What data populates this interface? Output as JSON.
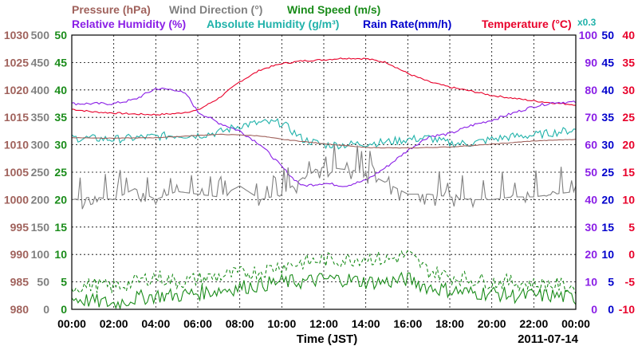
{
  "chart_data": {
    "type": "line",
    "date": "2011-07-14",
    "xlabel": "Time (JST)",
    "x_ticks": [
      "00:00",
      "02:00",
      "04:00",
      "06:00",
      "08:00",
      "10:00",
      "12:00",
      "14:00",
      "16:00",
      "18:00",
      "20:00",
      "22:00",
      "00:00"
    ],
    "x_range_hours": [
      0,
      24
    ],
    "grid": true,
    "colors": {
      "pressure": "#a0625c",
      "wind_direction": "#808080",
      "wind_speed": "#1a8c1a",
      "relative_humidity": "#8a1ee6",
      "absolute_humidity": "#20b2aa",
      "rain_rate": "#0000cc",
      "temperature": "#e8002a"
    },
    "legend_row1": [
      {
        "key": "pressure",
        "text": "Pressure (hPa)"
      },
      {
        "key": "wind_direction",
        "text": "Wind Direction (°)"
      },
      {
        "key": "wind_speed",
        "text": "Wind Speed (m/s)"
      }
    ],
    "legend_row2": [
      {
        "key": "relative_humidity",
        "text": "Relative Humidity (%)"
      },
      {
        "key": "absolute_humidity",
        "text": "Absolute Humidity (g/m³)"
      },
      {
        "key": "rain_rate",
        "text": "Rain Rate(mm/h)"
      },
      {
        "key": "temperature",
        "text": "Temperature (°C)"
      },
      {
        "key": "absolute_humidity",
        "text": "x0.3"
      }
    ],
    "axes": {
      "pressure": {
        "range": [
          980,
          1030
        ],
        "ticks": [
          "1030",
          "1025",
          "1020",
          "1015",
          "1010",
          "1005",
          "1000",
          "995",
          "990",
          "985",
          "980"
        ]
      },
      "wind_direction": {
        "range": [
          0,
          500
        ],
        "ticks": [
          "500",
          "450",
          "400",
          "350",
          "300",
          "250",
          "200",
          "150",
          "100",
          "50",
          "0"
        ]
      },
      "wind_speed": {
        "range": [
          0,
          50
        ],
        "ticks": [
          "50",
          "45",
          "40",
          "35",
          "30",
          "25",
          "20",
          "15",
          "10",
          "5",
          "0"
        ]
      },
      "relative_humidity": {
        "range": [
          0,
          100
        ],
        "ticks": [
          "100",
          "90",
          "80",
          "70",
          "60",
          "50",
          "40",
          "30",
          "20",
          "10",
          "0"
        ]
      },
      "rain_rate": {
        "range": [
          0,
          50
        ],
        "ticks": [
          "50",
          "45",
          "40",
          "35",
          "30",
          "25",
          "20",
          "15",
          "10",
          "5",
          "0"
        ]
      },
      "temperature": {
        "range": [
          -10,
          40
        ],
        "ticks": [
          "40",
          "35",
          "30",
          "25",
          "20",
          "15",
          "10",
          "5",
          "0",
          "-5",
          "-10"
        ]
      }
    },
    "series": [
      {
        "name": "Temperature (°C)",
        "key": "temperature",
        "axis": "temperature",
        "x": [
          0,
          1,
          2,
          3,
          4,
          5,
          6,
          7,
          8,
          9,
          10,
          11,
          12,
          13,
          14,
          15,
          16,
          17,
          18,
          19,
          20,
          21,
          22,
          23,
          24
        ],
        "y": [
          26.5,
          26,
          25.8,
          25.6,
          25.5,
          25.7,
          26.3,
          28.5,
          31.5,
          33.7,
          34.8,
          35.3,
          35.5,
          35.8,
          35.7,
          35,
          33,
          31.5,
          30.5,
          29.8,
          29,
          28.5,
          28,
          27.6,
          27.3
        ]
      },
      {
        "name": "Relative Humidity (%)",
        "key": "relative_humidity",
        "axis": "relative_humidity",
        "x": [
          0,
          1,
          2,
          3,
          4,
          5,
          5.5,
          6,
          7,
          8,
          9,
          10,
          10.5,
          11,
          12,
          13,
          14,
          15,
          16,
          17,
          18,
          19,
          20,
          21,
          22,
          23,
          24
        ],
        "y": [
          75,
          75,
          75,
          76.5,
          80.5,
          80,
          78,
          72,
          68,
          65,
          60,
          52,
          48,
          45,
          46,
          45,
          47,
          52,
          58,
          63,
          64,
          67,
          69,
          71.5,
          74,
          75.5,
          75.5
        ]
      },
      {
        "name": "Absolute Humidity (g/m³)",
        "key": "absolute_humidity",
        "axis": "relative_humidity",
        "x": [
          0,
          1,
          2,
          3,
          4,
          5,
          6,
          7,
          8,
          9,
          10,
          11,
          12,
          13,
          14,
          15,
          16,
          17,
          18,
          19,
          20,
          21,
          22,
          23,
          24
        ],
        "y": [
          62.5,
          62.3,
          62,
          62.5,
          63,
          63.5,
          63.5,
          64.5,
          67,
          68,
          68,
          62,
          60,
          60,
          60.5,
          61,
          62,
          62.5,
          60.5,
          60.5,
          62,
          63,
          63.5,
          64.5,
          65.5
        ]
      },
      {
        "name": "Pressure (hPa)",
        "key": "pressure",
        "axis": "pressure",
        "x": [
          0,
          2,
          4,
          6,
          7,
          8,
          9,
          10,
          12,
          14,
          16,
          18,
          20,
          22,
          24
        ],
        "y": [
          1011.3,
          1011.2,
          1011.3,
          1011.7,
          1011.9,
          1011.8,
          1011.6,
          1011,
          1010.2,
          1009.5,
          1009.4,
          1009.6,
          1010.1,
          1010.7,
          1011
        ]
      },
      {
        "name": "Wind Direction (°)",
        "key": "wind_direction",
        "axis": "wind_direction",
        "x": [
          0,
          1,
          2,
          3,
          4,
          5,
          6,
          7,
          8,
          9,
          10,
          11,
          12,
          13,
          14,
          15,
          16,
          17,
          18,
          19,
          20,
          21,
          22,
          23,
          24
        ],
        "y": [
          200,
          205,
          200,
          220,
          200,
          215,
          210,
          205,
          225,
          200,
          210,
          240,
          260,
          255,
          250,
          230,
          210,
          210,
          205,
          200,
          200,
          205,
          205,
          210,
          215
        ]
      },
      {
        "name": "Wind Speed (m/s)",
        "key": "wind_speed",
        "axis": "wind_speed",
        "x": [
          0,
          1,
          2,
          3,
          4,
          5,
          6,
          7,
          8,
          9,
          10,
          11,
          12,
          13,
          14,
          15,
          16,
          17,
          18,
          19,
          20,
          21,
          22,
          23,
          24
        ],
        "y": [
          2,
          1.5,
          1,
          2,
          2.5,
          2.5,
          3,
          3.5,
          4,
          4.5,
          5,
          5,
          5.5,
          5.5,
          5,
          5,
          5.5,
          4,
          3.5,
          3,
          3,
          2.5,
          2.5,
          2.5,
          2
        ]
      },
      {
        "name": "Wind Speed (m/s)",
        "key": "wind_speed",
        "axis": "wind_speed",
        "dashed": true,
        "x": [
          0,
          1,
          2,
          3,
          4,
          5,
          6,
          7,
          8,
          9,
          10,
          11,
          12,
          13,
          14,
          15,
          16,
          17,
          18,
          19,
          20,
          21,
          22,
          23,
          24
        ],
        "y": [
          4,
          4.5,
          4,
          5,
          6,
          5,
          5.5,
          6,
          6.5,
          7,
          8,
          8.5,
          9,
          9,
          9.5,
          9,
          10,
          7,
          6,
          5.5,
          5,
          5,
          4.5,
          4.5,
          4
        ]
      }
    ]
  }
}
